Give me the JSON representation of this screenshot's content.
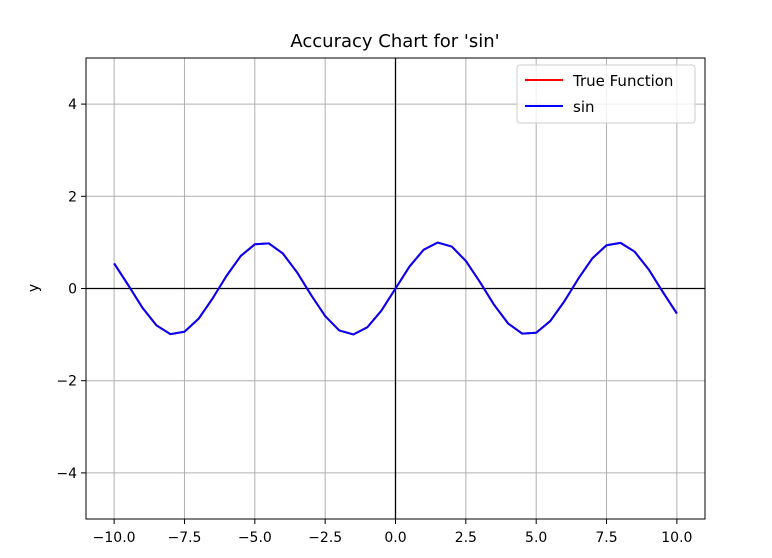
{
  "chart_data": {
    "type": "line",
    "title": "Accuracy Chart for 'sin'",
    "xlabel": "",
    "ylabel": "y",
    "xlim": [
      -11,
      11
    ],
    "ylim": [
      -5,
      5
    ],
    "x_ticks": [
      -10.0,
      -7.5,
      -5.0,
      -2.5,
      0.0,
      2.5,
      5.0,
      7.5,
      10.0
    ],
    "x_tick_labels": [
      "−10.0",
      "−7.5",
      "−5.0",
      "−2.5",
      "0.0",
      "2.5",
      "5.0",
      "7.5",
      "10.0"
    ],
    "y_ticks": [
      -4,
      -2,
      0,
      2,
      4
    ],
    "y_tick_labels": [
      "−4",
      "−2",
      "0",
      "2",
      "4"
    ],
    "grid": true,
    "legend_position": "top-right",
    "x": [
      -10.0,
      -9.5,
      -9.0,
      -8.5,
      -8.0,
      -7.5,
      -7.0,
      -6.5,
      -6.0,
      -5.5,
      -5.0,
      -4.5,
      -4.0,
      -3.5,
      -3.0,
      -2.5,
      -2.0,
      -1.5,
      -1.0,
      -0.5,
      0.0,
      0.5,
      1.0,
      1.5,
      2.0,
      2.5,
      3.0,
      3.5,
      4.0,
      4.5,
      5.0,
      5.5,
      6.0,
      6.5,
      7.0,
      7.5,
      8.0,
      8.5,
      9.0,
      9.5,
      10.0
    ],
    "series": [
      {
        "name": "True Function",
        "color": "#ff0000",
        "values": [
          0.544,
          0.075,
          -0.412,
          -0.798,
          -0.989,
          -0.938,
          -0.657,
          -0.215,
          0.279,
          0.706,
          0.959,
          0.978,
          0.757,
          0.351,
          -0.141,
          -0.598,
          -0.909,
          -0.997,
          -0.841,
          -0.479,
          0.0,
          0.479,
          0.841,
          0.997,
          0.909,
          0.598,
          0.141,
          -0.351,
          -0.757,
          -0.978,
          -0.959,
          -0.706,
          -0.279,
          0.215,
          0.657,
          0.938,
          0.989,
          0.798,
          0.412,
          -0.075,
          -0.544
        ]
      },
      {
        "name": "sin",
        "color": "#0000ff",
        "values": [
          0.544,
          0.075,
          -0.412,
          -0.798,
          -0.989,
          -0.938,
          -0.657,
          -0.215,
          0.279,
          0.706,
          0.959,
          0.978,
          0.757,
          0.351,
          -0.141,
          -0.598,
          -0.909,
          -0.997,
          -0.841,
          -0.479,
          0.0,
          0.479,
          0.841,
          0.997,
          0.909,
          0.598,
          0.141,
          -0.351,
          -0.757,
          -0.978,
          -0.959,
          -0.706,
          -0.279,
          0.215,
          0.657,
          0.938,
          0.989,
          0.798,
          0.412,
          -0.075,
          -0.544
        ]
      }
    ]
  }
}
